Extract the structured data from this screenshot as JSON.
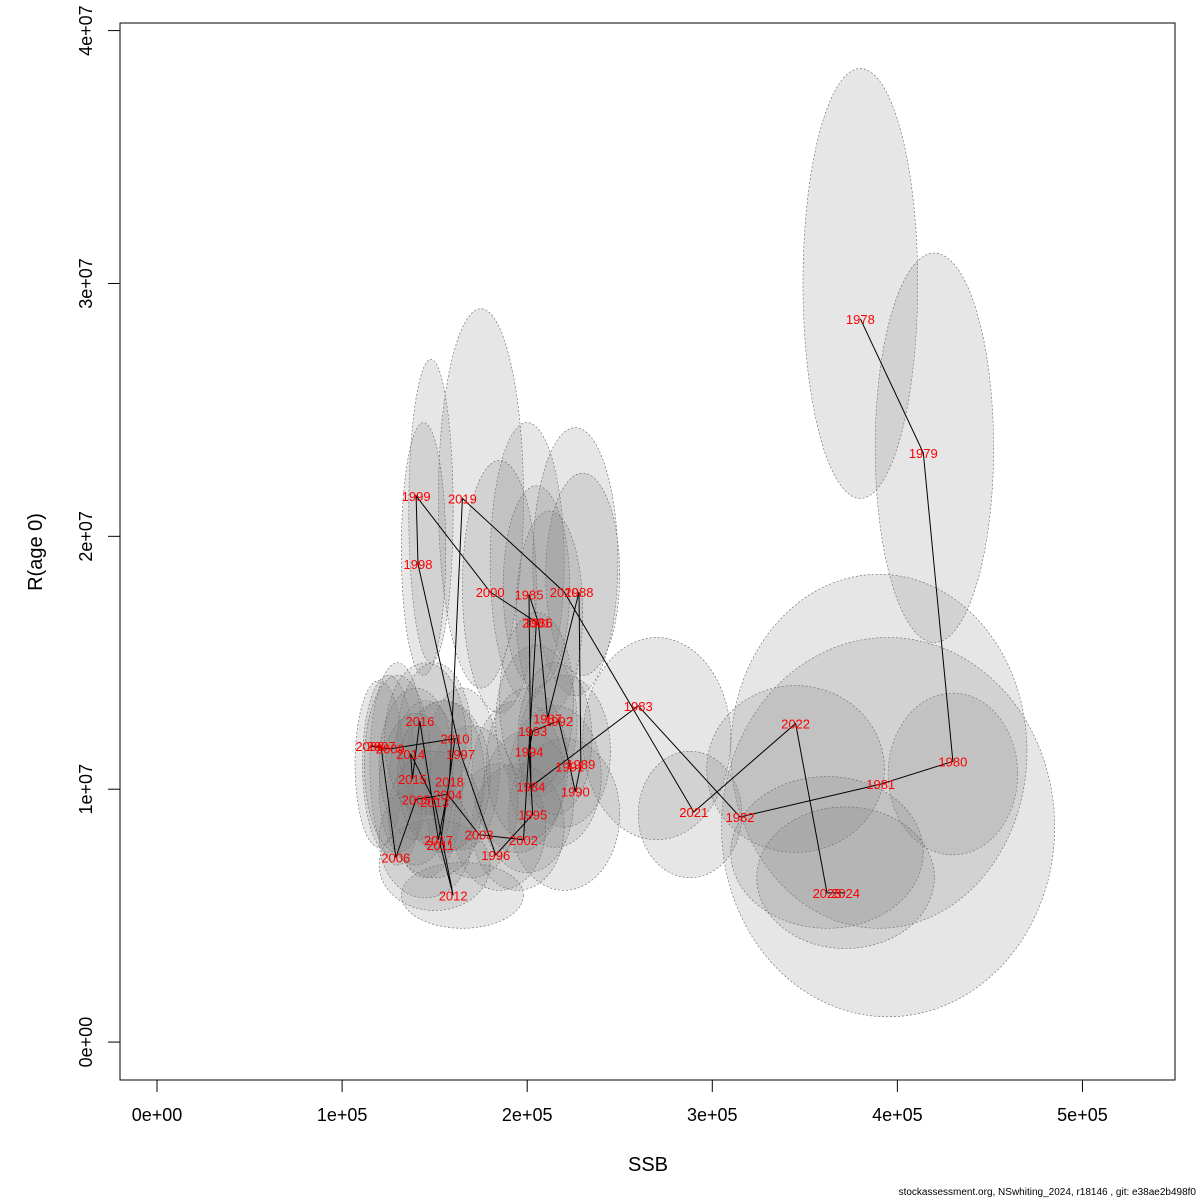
{
  "chart_data": {
    "type": "scatter",
    "title": "",
    "xlabel": "SSB",
    "ylabel": "R(age 0)",
    "xlim": [
      -20000,
      550000
    ],
    "ylim": [
      -1500000,
      40300000
    ],
    "x_ticks": [
      {
        "value": 0,
        "label": "0e+00"
      },
      {
        "value": 100000,
        "label": "1e+05"
      },
      {
        "value": 200000,
        "label": "2e+05"
      },
      {
        "value": 300000,
        "label": "3e+05"
      },
      {
        "value": 400000,
        "label": "4e+05"
      },
      {
        "value": 500000,
        "label": "5e+05"
      }
    ],
    "y_ticks": [
      {
        "value": 0,
        "label": "0e+00"
      },
      {
        "value": 10000000,
        "label": "1e+07"
      },
      {
        "value": 20000000,
        "label": "2e+07"
      },
      {
        "value": 30000000,
        "label": "3e+07"
      },
      {
        "value": 40000000,
        "label": "4e+07"
      }
    ],
    "grid": false,
    "legend": "none",
    "colors": {
      "labels": "#ff0000",
      "path": "#000000",
      "ellipse_fill": "rgba(128,128,128,0.2)",
      "ellipse_stroke": "#666666"
    },
    "points": [
      {
        "year": "1978",
        "ssb": 380000,
        "rec": 28600000
      },
      {
        "year": "1979",
        "ssb": 414000,
        "rec": 23300000
      },
      {
        "year": "1980",
        "ssb": 430000,
        "rec": 11100000
      },
      {
        "year": "1981",
        "ssb": 391000,
        "rec": 10200000
      },
      {
        "year": "1982",
        "ssb": 315000,
        "rec": 8900000
      },
      {
        "year": "1983",
        "ssb": 260000,
        "rec": 13300000
      },
      {
        "year": "1984",
        "ssb": 202000,
        "rec": 10100000
      },
      {
        "year": "1985",
        "ssb": 201000,
        "rec": 17700000
      },
      {
        "year": "1986",
        "ssb": 206000,
        "rec": 16600000
      },
      {
        "year": "1987",
        "ssb": 211000,
        "rec": 12800000
      },
      {
        "year": "1988",
        "ssb": 228000,
        "rec": 17800000
      },
      {
        "year": "1989",
        "ssb": 229000,
        "rec": 11000000
      },
      {
        "year": "1990",
        "ssb": 226000,
        "rec": 9900000
      },
      {
        "year": "1991",
        "ssb": 223000,
        "rec": 10900000
      },
      {
        "year": "1992",
        "ssb": 217000,
        "rec": 12700000
      },
      {
        "year": "1993",
        "ssb": 203000,
        "rec": 12300000
      },
      {
        "year": "1994",
        "ssb": 201000,
        "rec": 11500000
      },
      {
        "year": "1995",
        "ssb": 203000,
        "rec": 9000000
      },
      {
        "year": "1996",
        "ssb": 183000,
        "rec": 7400000
      },
      {
        "year": "1997",
        "ssb": 164000,
        "rec": 11400000
      },
      {
        "year": "1998",
        "ssb": 141000,
        "rec": 18900000
      },
      {
        "year": "1999",
        "ssb": 140000,
        "rec": 21600000
      },
      {
        "year": "2000",
        "ssb": 180000,
        "rec": 17800000
      },
      {
        "year": "2001",
        "ssb": 205000,
        "rec": 16600000
      },
      {
        "year": "2002",
        "ssb": 198000,
        "rec": 8000000
      },
      {
        "year": "2003",
        "ssb": 174000,
        "rec": 8200000
      },
      {
        "year": "2004",
        "ssb": 157000,
        "rec": 9800000
      },
      {
        "year": "2005",
        "ssb": 140000,
        "rec": 9600000
      },
      {
        "year": "2006",
        "ssb": 129000,
        "rec": 7300000
      },
      {
        "year": "2007",
        "ssb": 121000,
        "rec": 11700000
      },
      {
        "year": "2008",
        "ssb": 115000,
        "rec": 11700000
      },
      {
        "year": "2009",
        "ssb": 126000,
        "rec": 11600000
      },
      {
        "year": "2010",
        "ssb": 161000,
        "rec": 12000000
      },
      {
        "year": "2011",
        "ssb": 153000,
        "rec": 7800000
      },
      {
        "year": "2012",
        "ssb": 160000,
        "rec": 5800000
      },
      {
        "year": "2013",
        "ssb": 150000,
        "rec": 9500000
      },
      {
        "year": "2014",
        "ssb": 137000,
        "rec": 11400000
      },
      {
        "year": "2015",
        "ssb": 138000,
        "rec": 10400000
      },
      {
        "year": "2016",
        "ssb": 142000,
        "rec": 12700000
      },
      {
        "year": "2017",
        "ssb": 152000,
        "rec": 8000000
      },
      {
        "year": "2018",
        "ssb": 158000,
        "rec": 10300000
      },
      {
        "year": "2019",
        "ssb": 165000,
        "rec": 21500000
      },
      {
        "year": "2020",
        "ssb": 220000,
        "rec": 17800000
      },
      {
        "year": "2021",
        "ssb": 290000,
        "rec": 9100000
      },
      {
        "year": "2022",
        "ssb": 345000,
        "rec": 12600000
      },
      {
        "year": "2023",
        "ssb": 362000,
        "rec": 5900000
      },
      {
        "year": "2024",
        "ssb": 372000,
        "rec": 5900000
      }
    ],
    "ellipses": [
      {
        "year": "1978",
        "ssb": 380000,
        "rec": 30000000,
        "sd_ssb": 31000,
        "sd_rec": 8500000
      },
      {
        "year": "1979",
        "ssb": 420000,
        "rec": 23500000,
        "sd_ssb": 32000,
        "sd_rec": 7700000
      },
      {
        "year": "1980",
        "ssb": 430000,
        "rec": 10600000,
        "sd_ssb": 35000,
        "sd_rec": 3200000
      },
      {
        "year": "1981",
        "ssb": 395000,
        "rec": 8500000,
        "sd_ssb": 90000,
        "sd_rec": 7500000
      },
      {
        "year": "1982",
        "ssb": 390000,
        "rec": 11500000,
        "sd_ssb": 80000,
        "sd_rec": 7000000
      },
      {
        "year": "1983",
        "ssb": 270000,
        "rec": 12000000,
        "sd_ssb": 40000,
        "sd_rec": 4000000
      },
      {
        "year": "2021",
        "ssb": 288000,
        "rec": 9000000,
        "sd_ssb": 28000,
        "sd_rec": 2500000
      },
      {
        "year": "2022",
        "ssb": 345000,
        "rec": 10800000,
        "sd_ssb": 48000,
        "sd_rec": 3300000
      },
      {
        "year": "2023",
        "ssb": 362000,
        "rec": 7500000,
        "sd_ssb": 52000,
        "sd_rec": 3000000
      },
      {
        "year": "2024",
        "ssb": 372000,
        "rec": 6500000,
        "sd_ssb": 48000,
        "sd_rec": 2800000
      },
      {
        "year": "1985",
        "ssb": 200000,
        "rec": 19000000,
        "sd_ssb": 20000,
        "sd_rec": 5500000
      },
      {
        "year": "1988",
        "ssb": 226000,
        "rec": 19000000,
        "sd_ssb": 23000,
        "sd_rec": 5300000
      },
      {
        "year": "1999",
        "ssb": 148000,
        "rec": 21000000,
        "sd_ssb": 12000,
        "sd_rec": 6000000
      },
      {
        "year": "2019",
        "ssb": 175000,
        "rec": 21500000,
        "sd_ssb": 23000,
        "sd_rec": 7500000
      },
      {
        "year": "1998",
        "ssb": 144000,
        "rec": 19500000,
        "sd_ssb": 12000,
        "sd_rec": 5000000
      },
      {
        "year": "2000",
        "ssb": 185000,
        "rec": 18000000,
        "sd_ssb": 20000,
        "sd_rec": 5000000
      },
      {
        "year": "2020",
        "ssb": 230000,
        "rec": 18500000,
        "sd_ssb": 20000,
        "sd_rec": 4000000
      },
      {
        "year": "2001",
        "ssb": 205000,
        "rec": 18000000,
        "sd_ssb": 18000,
        "sd_rec": 4000000
      },
      {
        "year": "1986",
        "ssb": 212000,
        "rec": 17000000,
        "sd_ssb": 18000,
        "sd_rec": 4000000
      },
      {
        "year": "1987",
        "ssb": 205000,
        "rec": 12700000,
        "sd_ssb": 22000,
        "sd_rec": 3000000
      },
      {
        "year": "1992",
        "ssb": 220000,
        "rec": 11500000,
        "sd_ssb": 25000,
        "sd_rec": 3000000
      },
      {
        "year": "1989",
        "ssb": 215000,
        "rec": 10500000,
        "sd_ssb": 25000,
        "sd_rec": 2800000
      },
      {
        "year": "1990",
        "ssb": 220000,
        "rec": 9000000,
        "sd_ssb": 30000,
        "sd_rec": 3000000
      },
      {
        "year": "1994",
        "ssb": 195000,
        "rec": 10500000,
        "sd_ssb": 25000,
        "sd_rec": 3000000
      },
      {
        "year": "1995",
        "ssb": 200000,
        "rec": 9500000,
        "sd_ssb": 25000,
        "sd_rec": 2800000
      },
      {
        "year": "1996",
        "ssb": 185000,
        "rec": 8500000,
        "sd_ssb": 25000,
        "sd_rec": 2500000
      },
      {
        "year": "2002",
        "ssb": 195000,
        "rec": 8500000,
        "sd_ssb": 25000,
        "sd_rec": 2500000
      },
      {
        "year": "1997",
        "ssb": 165000,
        "rec": 10800000,
        "sd_ssb": 20000,
        "sd_rec": 3200000
      },
      {
        "year": "2003",
        "ssb": 170000,
        "rec": 9500000,
        "sd_ssb": 25000,
        "sd_rec": 3000000
      },
      {
        "year": "2004",
        "ssb": 155000,
        "rec": 10500000,
        "sd_ssb": 22000,
        "sd_rec": 3000000
      },
      {
        "year": "2005",
        "ssb": 145000,
        "rec": 10000000,
        "sd_ssb": 20000,
        "sd_rec": 3500000
      },
      {
        "year": "2006",
        "ssb": 130000,
        "rec": 11000000,
        "sd_ssb": 15000,
        "sd_rec": 4000000
      },
      {
        "year": "2007",
        "ssb": 125000,
        "rec": 11000000,
        "sd_ssb": 14000,
        "sd_rec": 3500000
      },
      {
        "year": "2008",
        "ssb": 120000,
        "rec": 11000000,
        "sd_ssb": 13000,
        "sd_rec": 3300000
      },
      {
        "year": "2009",
        "ssb": 130000,
        "rec": 11000000,
        "sd_ssb": 18000,
        "sd_rec": 3500000
      },
      {
        "year": "2010",
        "ssb": 150000,
        "rec": 12000000,
        "sd_ssb": 20000,
        "sd_rec": 3000000
      },
      {
        "year": "2011",
        "ssb": 145000,
        "rec": 8000000,
        "sd_ssb": 25000,
        "sd_rec": 2300000
      },
      {
        "year": "2012",
        "ssb": 165000,
        "rec": 5800000,
        "sd_ssb": 33000,
        "sd_rec": 1300000
      },
      {
        "year": "2013",
        "ssb": 150000,
        "rec": 7000000,
        "sd_ssb": 30000,
        "sd_rec": 1800000
      },
      {
        "year": "2014",
        "ssb": 140000,
        "rec": 11000000,
        "sd_ssb": 20000,
        "sd_rec": 3000000
      },
      {
        "year": "2015",
        "ssb": 140000,
        "rec": 10000000,
        "sd_ssb": 20000,
        "sd_rec": 3000000
      },
      {
        "year": "2016",
        "ssb": 145000,
        "rec": 12000000,
        "sd_ssb": 22000,
        "sd_rec": 3000000
      },
      {
        "year": "2017",
        "ssb": 150000,
        "rec": 9000000,
        "sd_ssb": 25000,
        "sd_rec": 2500000
      },
      {
        "year": "2018",
        "ssb": 155000,
        "rec": 10500000,
        "sd_ssb": 25000,
        "sd_rec": 3000000
      },
      {
        "year": "1984",
        "ssb": 200000,
        "rec": 11000000,
        "sd_ssb": 22000,
        "sd_rec": 3000000
      },
      {
        "year": "1991",
        "ssb": 215000,
        "rec": 12000000,
        "sd_ssb": 20000,
        "sd_rec": 3000000
      },
      {
        "year": "1993",
        "ssb": 205000,
        "rec": 13500000,
        "sd_ssb": 20000,
        "sd_rec": 3500000
      }
    ],
    "annotation": "stockassessment.org, NSwhiting_2024, r18146 , git: e38ae2b498f0"
  }
}
